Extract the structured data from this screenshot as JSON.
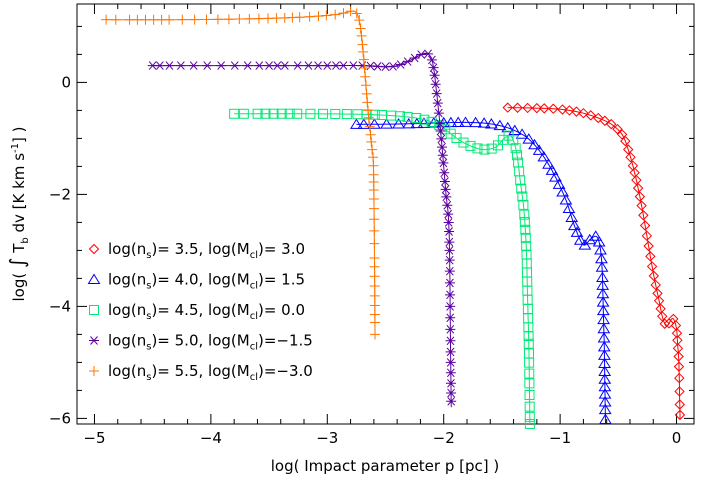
{
  "chart_data": {
    "type": "line",
    "title": "",
    "xlabel": "log( Impact parameter p [pc] )",
    "ylabel": "log( ∫ Tb dv [K km s-1] )",
    "ylabel_parts": {
      "pre": "log( ",
      "integral": "∫",
      "t": " T",
      "t_sub": "b",
      "mid": " dv [K km s",
      "sup": "-1",
      "post": "] )"
    },
    "xlim": [
      -5.15,
      0.15
    ],
    "ylim": [
      -6.1,
      1.4
    ],
    "x_ticks": [
      -5,
      -4,
      -3,
      -2,
      -1,
      0
    ],
    "x_tick_labels": [
      "−5",
      "−4",
      "−3",
      "−2",
      "−1",
      "0"
    ],
    "y_ticks": [
      -6,
      -4,
      -2,
      0
    ],
    "y_tick_labels": [
      "−6",
      "−4",
      "−2",
      "0"
    ],
    "grid": false,
    "legend_position": "lower-left",
    "series": [
      {
        "name": "log(ns)= 3.5, log(Mcl)= 3.0",
        "legend": {
          "ns": "3.5",
          "mcl": " 3.0"
        },
        "color": "#ff0000",
        "marker": "diamond",
        "points": [
          [
            -1.45,
            -0.45
          ],
          [
            -1.2,
            -0.46
          ],
          [
            -1.0,
            -0.48
          ],
          [
            -0.8,
            -0.55
          ],
          [
            -0.6,
            -0.7
          ],
          [
            -0.5,
            -0.85
          ],
          [
            -0.45,
            -1.0
          ],
          [
            -0.4,
            -1.3
          ],
          [
            -0.35,
            -1.7
          ],
          [
            -0.3,
            -2.2
          ],
          [
            -0.25,
            -2.8
          ],
          [
            -0.2,
            -3.4
          ],
          [
            -0.15,
            -3.9
          ],
          [
            -0.12,
            -4.2
          ],
          [
            -0.09,
            -4.35
          ],
          [
            -0.07,
            -4.32
          ],
          [
            -0.04,
            -4.22
          ],
          [
            -0.02,
            -4.25
          ],
          [
            0.0,
            -4.4
          ],
          [
            0.01,
            -4.7
          ],
          [
            0.02,
            -5.0
          ],
          [
            0.03,
            -6.0
          ]
        ]
      },
      {
        "name": "log(ns)= 4.0, log(Mcl)= 1.5",
        "legend": {
          "ns": "4.0",
          "mcl": " 1.5"
        },
        "color": "#0000ff",
        "marker": "triangle",
        "points": [
          [
            -2.75,
            -0.75
          ],
          [
            -2.3,
            -0.74
          ],
          [
            -2.0,
            -0.72
          ],
          [
            -1.7,
            -0.72
          ],
          [
            -1.5,
            -0.78
          ],
          [
            -1.35,
            -0.9
          ],
          [
            -1.25,
            -1.05
          ],
          [
            -1.15,
            -1.3
          ],
          [
            -1.05,
            -1.65
          ],
          [
            -0.95,
            -2.1
          ],
          [
            -0.87,
            -2.6
          ],
          [
            -0.8,
            -2.9
          ],
          [
            -0.74,
            -2.8
          ],
          [
            -0.69,
            -2.75
          ],
          [
            -0.66,
            -2.9
          ],
          [
            -0.64,
            -3.3
          ],
          [
            -0.63,
            -4.0
          ],
          [
            -0.62,
            -4.8
          ],
          [
            -0.615,
            -5.5
          ],
          [
            -0.61,
            -6.1
          ]
        ]
      },
      {
        "name": "log(ns)= 4.5, log(Mcl)= 0.0",
        "legend": {
          "ns": "4.5",
          "mcl": " 0.0"
        },
        "color": "#00e874",
        "marker": "square",
        "points": [
          [
            -3.8,
            -0.56
          ],
          [
            -3.2,
            -0.56
          ],
          [
            -2.7,
            -0.57
          ],
          [
            -2.4,
            -0.6
          ],
          [
            -2.2,
            -0.65
          ],
          [
            -2.05,
            -0.75
          ],
          [
            -1.95,
            -0.9
          ],
          [
            -1.85,
            -1.05
          ],
          [
            -1.75,
            -1.15
          ],
          [
            -1.65,
            -1.2
          ],
          [
            -1.55,
            -1.15
          ],
          [
            -1.48,
            -1.0
          ],
          [
            -1.43,
            -0.95
          ],
          [
            -1.4,
            -1.05
          ],
          [
            -1.37,
            -1.3
          ],
          [
            -1.34,
            -1.8
          ],
          [
            -1.31,
            -2.3
          ],
          [
            -1.29,
            -3.0
          ],
          [
            -1.28,
            -3.8
          ],
          [
            -1.27,
            -4.6
          ],
          [
            -1.265,
            -5.2
          ],
          [
            -1.26,
            -6.1
          ]
        ]
      },
      {
        "name": "log(ns)= 5.0, log(Mcl)=−1.5",
        "legend": {
          "ns": "5.0",
          "mcl": "−1.5"
        },
        "color": "#5a00a0",
        "marker": "asterisk",
        "points": [
          [
            -4.5,
            0.3
          ],
          [
            -3.5,
            0.3
          ],
          [
            -3.0,
            0.3
          ],
          [
            -2.7,
            0.3
          ],
          [
            -2.5,
            0.28
          ],
          [
            -2.4,
            0.3
          ],
          [
            -2.3,
            0.38
          ],
          [
            -2.22,
            0.47
          ],
          [
            -2.16,
            0.52
          ],
          [
            -2.12,
            0.48
          ],
          [
            -2.09,
            0.3
          ],
          [
            -2.06,
            -0.2
          ],
          [
            -2.03,
            -0.8
          ],
          [
            -2.0,
            -1.5
          ],
          [
            -1.98,
            -2.0
          ],
          [
            -1.96,
            -2.4
          ],
          [
            -1.95,
            -3.0
          ],
          [
            -1.945,
            -4.0
          ],
          [
            -1.94,
            -5.0
          ],
          [
            -1.935,
            -5.8
          ]
        ]
      },
      {
        "name": "log(ns)= 5.5, log(Mcl)=−3.0",
        "legend": {
          "ns": "5.5",
          "mcl": "−3.0"
        },
        "color": "#ff7500",
        "marker": "plus",
        "points": [
          [
            -4.9,
            1.12
          ],
          [
            -4.3,
            1.12
          ],
          [
            -3.8,
            1.13
          ],
          [
            -3.4,
            1.15
          ],
          [
            -3.1,
            1.18
          ],
          [
            -2.9,
            1.22
          ],
          [
            -2.8,
            1.27
          ],
          [
            -2.76,
            1.26
          ],
          [
            -2.73,
            1.15
          ],
          [
            -2.71,
            0.9
          ],
          [
            -2.69,
            0.5
          ],
          [
            -2.67,
            0.0
          ],
          [
            -2.65,
            -0.5
          ],
          [
            -2.63,
            -0.9
          ],
          [
            -2.615,
            -1.2
          ],
          [
            -2.605,
            -1.4
          ],
          [
            -2.6,
            -2.0
          ],
          [
            -2.595,
            -3.0
          ],
          [
            -2.59,
            -4.5
          ]
        ]
      }
    ]
  }
}
